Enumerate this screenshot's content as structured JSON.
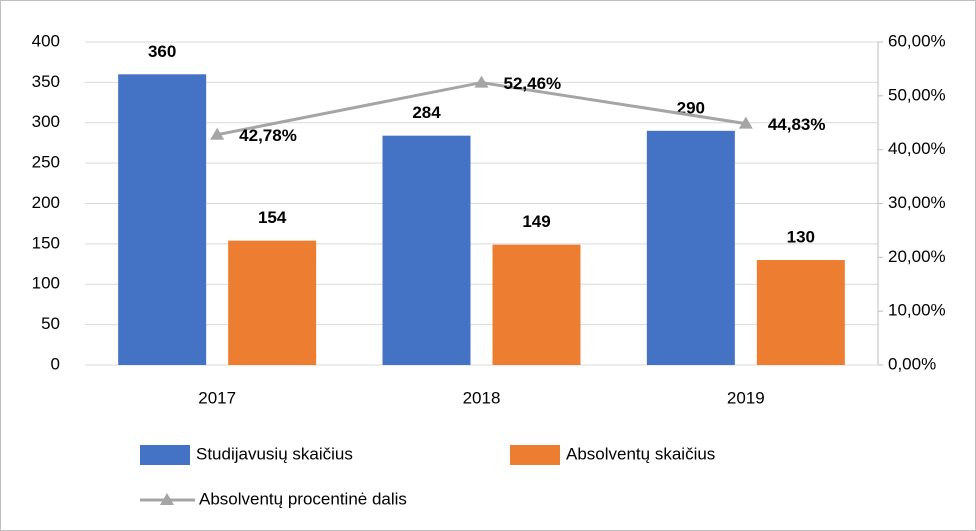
{
  "chart_data": {
    "type": "bar",
    "categories": [
      "2017",
      "2018",
      "2019"
    ],
    "series": [
      {
        "name": "Studijavusių skaičius",
        "color": "#4472c4",
        "values": [
          360,
          284,
          290
        ]
      },
      {
        "name": "Absolventų skaičius",
        "color": "#ed7d31",
        "values": [
          154,
          149,
          130
        ]
      },
      {
        "name": "Absolventų procentinė dalis",
        "color": "#a5a5a5",
        "type": "line",
        "axis": "y2",
        "values": [
          42.78,
          52.46,
          44.83
        ],
        "value_labels": [
          "42,78%",
          "52,46%",
          "44,83%"
        ]
      }
    ],
    "ylim": [
      0,
      400
    ],
    "yticks": [
      0,
      50,
      100,
      150,
      200,
      250,
      300,
      350,
      400
    ],
    "y2lim": [
      0,
      60
    ],
    "y2ticks": [
      {
        "value": 0,
        "label": "0,00%"
      },
      {
        "value": 10,
        "label": "10,00%"
      },
      {
        "value": 20,
        "label": "20,00%"
      },
      {
        "value": 30,
        "label": "30,00%"
      },
      {
        "value": 40,
        "label": "40,00%"
      },
      {
        "value": 50,
        "label": "50,00%"
      },
      {
        "value": 60,
        "label": "60,00%"
      }
    ],
    "grid": true,
    "legend": "bottom"
  }
}
